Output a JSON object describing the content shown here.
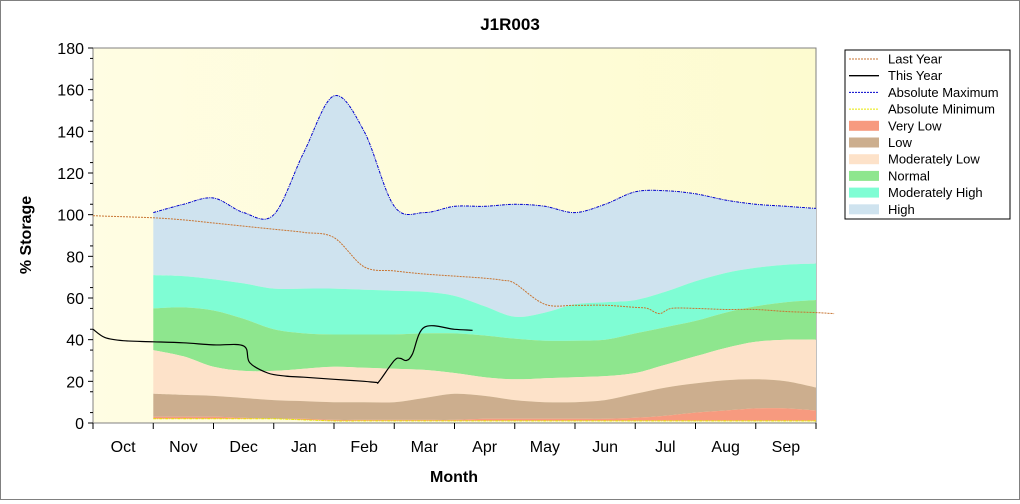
{
  "colors": {
    "plot_gradient_start": "#fffde3",
    "plot_gradient_end": "#fdfbd0",
    "last_year": "#c87533",
    "this_year": "#000000",
    "absolute_maximum": "#0000cc",
    "absolute_minimum": "#e6e600",
    "very_low": "#f79a7f",
    "low": "#ccae8e",
    "moderately_low": "#fde2c9",
    "normal": "#8ee68e",
    "moderately_high": "#7ffdd4",
    "high": "#cfe3ef"
  },
  "chart_data": {
    "type": "area",
    "title": "J1R003",
    "xlabel": "Month",
    "ylabel": "% Storage",
    "ylim": [
      0,
      180
    ],
    "yticks": [
      0,
      20,
      40,
      60,
      80,
      100,
      120,
      140,
      160,
      180
    ],
    "grid": false,
    "legend_position": "right",
    "months": [
      "Oct",
      "Nov",
      "Dec",
      "Jan",
      "Feb",
      "Mar",
      "Apr",
      "May",
      "Jun",
      "Jul",
      "Aug",
      "Sep"
    ],
    "legend": [
      {
        "key": "last_year",
        "label": "Last Year",
        "style": "dotted-line"
      },
      {
        "key": "this_year",
        "label": "This Year",
        "style": "line"
      },
      {
        "key": "absolute_maximum",
        "label": "Absolute Maximum",
        "style": "dotted-line"
      },
      {
        "key": "absolute_minimum",
        "label": "Absolute Minimum",
        "style": "dotted-line"
      },
      {
        "key": "very_low",
        "label": "Very Low",
        "style": "band"
      },
      {
        "key": "low",
        "label": "Low",
        "style": "band"
      },
      {
        "key": "moderately_low",
        "label": "Moderately Low",
        "style": "band"
      },
      {
        "key": "normal",
        "label": "Normal",
        "style": "band"
      },
      {
        "key": "moderately_high",
        "label": "Moderately High",
        "style": "band"
      },
      {
        "key": "high",
        "label": "High",
        "style": "band"
      }
    ],
    "band_x": [
      1,
      1.5,
      2,
      2.5,
      3,
      3.5,
      4,
      4.5,
      5,
      5.5,
      6,
      6.5,
      7,
      7.5,
      8,
      8.5,
      9,
      9.5,
      10,
      10.5,
      11,
      11.5,
      12
    ],
    "bands": {
      "absolute_minimum": [
        2,
        2,
        2,
        2,
        2,
        1.5,
        1,
        1,
        1,
        1,
        1,
        1,
        1,
        1,
        1,
        1,
        1,
        1,
        1,
        1,
        1,
        1,
        1
      ],
      "very_low_top": [
        3,
        3,
        3,
        2.5,
        2,
        2,
        1.5,
        1.5,
        1.5,
        1.5,
        1.5,
        2,
        2,
        2,
        2,
        2,
        2.5,
        3.5,
        5,
        6,
        7,
        7,
        6
      ],
      "low_top": [
        14,
        13.5,
        13,
        12,
        11,
        10.5,
        10,
        10,
        10,
        12,
        14,
        13,
        11,
        10,
        10,
        11,
        14,
        17,
        19,
        20.5,
        21,
        20,
        17
      ],
      "moderately_low_top": [
        35,
        32,
        27,
        25,
        25,
        26,
        27,
        26.5,
        26,
        25.5,
        24,
        22,
        21,
        21.5,
        22,
        22.5,
        24,
        28,
        32,
        36,
        39,
        40,
        40
      ],
      "normal_top": [
        55,
        55.5,
        54,
        50,
        45,
        43,
        42.5,
        42.5,
        42.5,
        43,
        43,
        42,
        40.5,
        39.5,
        39.5,
        40,
        43,
        46,
        49,
        53,
        56,
        58,
        59
      ],
      "moderately_high_top": [
        71,
        70.5,
        69,
        67,
        64.5,
        64.5,
        64.5,
        64,
        63.5,
        63,
        61,
        56,
        51,
        53,
        57,
        58,
        59,
        63,
        68,
        72,
        74.5,
        76,
        76.5
      ],
      "absolute_maximum": [
        101,
        105,
        108,
        101,
        100,
        130,
        157,
        140,
        104,
        101,
        104,
        104,
        105,
        104,
        101,
        105,
        111,
        111.5,
        110,
        107,
        105,
        104,
        103
      ]
    },
    "series": [
      {
        "name": "Last Year",
        "x": [
          0,
          0.5,
          1,
          1.5,
          2,
          2.5,
          3,
          3.5,
          4,
          4.5,
          5,
          5.5,
          6,
          6.5,
          6.8,
          7,
          7.5,
          8,
          8.5,
          9,
          9.2,
          9.4,
          9.6,
          10,
          10.5,
          11,
          11.5,
          12,
          12.3
        ],
        "y": [
          99.5,
          99,
          98.5,
          97.5,
          96,
          94.5,
          93,
          91.5,
          89,
          75,
          73,
          71.5,
          70.5,
          69.5,
          68.5,
          67,
          57,
          56.5,
          56.5,
          55.5,
          55,
          52.5,
          55,
          55,
          54.5,
          54.5,
          53.5,
          53,
          52.5
        ]
      },
      {
        "name": "This Year",
        "x": [
          0,
          0.2,
          0.5,
          1,
          1.5,
          2,
          2.5,
          2.6,
          2.9,
          3.2,
          3.5,
          4,
          4.5,
          4.7,
          4.75,
          5,
          5.1,
          5.2,
          5.3,
          5.5,
          6,
          6.3
        ],
        "y": [
          45,
          41,
          39.5,
          39,
          38.5,
          37.5,
          37,
          29,
          24,
          22.5,
          22,
          21,
          20,
          19.5,
          20,
          30,
          31,
          30,
          33,
          46,
          45,
          44.5
        ]
      }
    ]
  }
}
